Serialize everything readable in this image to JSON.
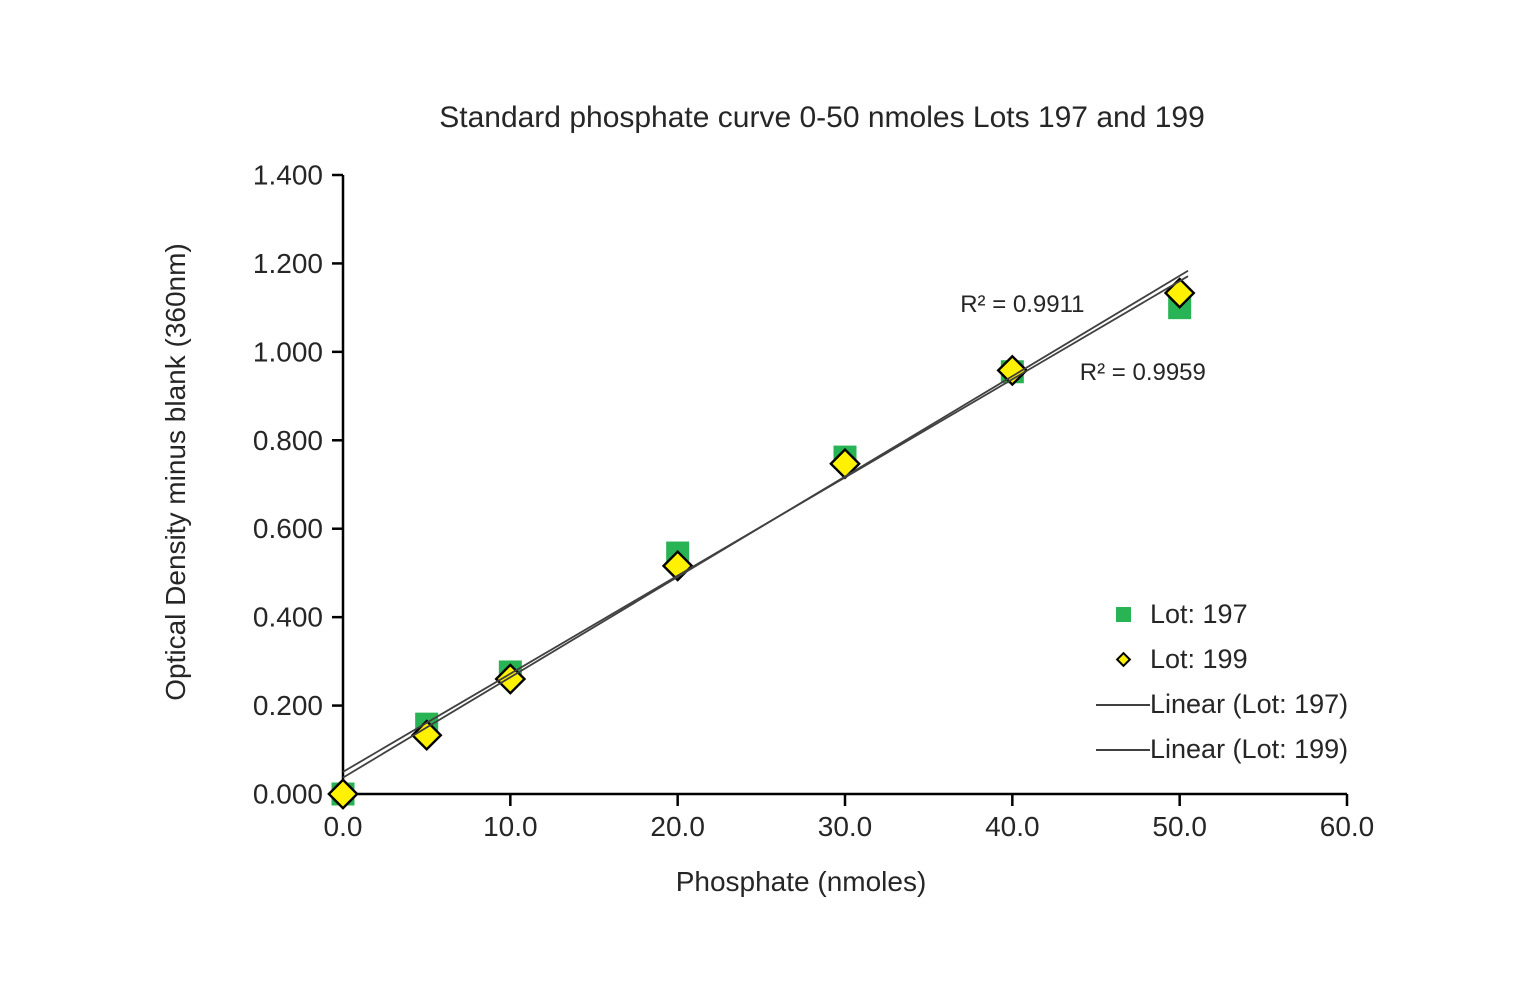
{
  "chart_data": {
    "type": "scatter",
    "title": "Standard phosphate curve 0-50 nmoles Lots 197 and 199",
    "xlabel": "Phosphate (nmoles)",
    "ylabel": "Optical Density minus blank (360nm)",
    "xlim": [
      0,
      60
    ],
    "ylim": [
      0,
      1.4
    ],
    "grid": false,
    "legend_position": "right-center",
    "xticks": {
      "values": [
        0,
        10,
        20,
        30,
        40,
        50,
        60
      ],
      "labels": [
        "0.0",
        "10.0",
        "20.0",
        "30.0",
        "40.0",
        "50.0",
        "60.0"
      ]
    },
    "yticks": {
      "values": [
        0,
        0.2,
        0.4,
        0.6,
        0.8,
        1.0,
        1.2,
        1.4
      ],
      "labels": [
        "0.000",
        "0.200",
        "0.400",
        "0.600",
        "0.800",
        "1.000",
        "1.200",
        "1.400"
      ]
    },
    "x": [
      0,
      5,
      10,
      20,
      30,
      40,
      50
    ],
    "series": [
      {
        "name": "Lot: 197",
        "marker": "square",
        "color": "#28B455",
        "values": [
          0.0,
          0.158,
          0.276,
          0.545,
          0.762,
          0.955,
          1.1
        ]
      },
      {
        "name": "Lot: 199",
        "marker": "diamond",
        "color": "#FFF100",
        "outline": "#000000",
        "values": [
          0.0,
          0.133,
          0.26,
          0.516,
          0.747,
          0.958,
          1.133
        ]
      }
    ],
    "trendlines": [
      {
        "name": "Linear (Lot: 197)",
        "slope": 0.0222,
        "intercept": 0.05,
        "x_range": [
          0,
          50.5
        ],
        "r_squared": "R² = 0.9911",
        "color": "#404040"
      },
      {
        "name": "Linear (Lot: 199)",
        "slope": 0.0227,
        "intercept": 0.037,
        "x_range": [
          0,
          50.5
        ],
        "r_squared": "R² = 0.9959",
        "color": "#404040"
      }
    ],
    "annotations": [
      {
        "text": "R² = 0.9911",
        "x": 40.6,
        "y": 1.107
      },
      {
        "text": "R² = 0.9959",
        "x": 47.8,
        "y": 0.953
      }
    ],
    "axis_color": "#000000",
    "label_color": "#262626"
  },
  "legend": {
    "items": [
      {
        "label": "Lot: 197",
        "swatch": "square"
      },
      {
        "label": "Lot: 199",
        "swatch": "diamond"
      },
      {
        "label": "Linear (Lot: 197)",
        "swatch": "line"
      },
      {
        "label": "Linear (Lot: 199)",
        "swatch": "line"
      }
    ]
  }
}
